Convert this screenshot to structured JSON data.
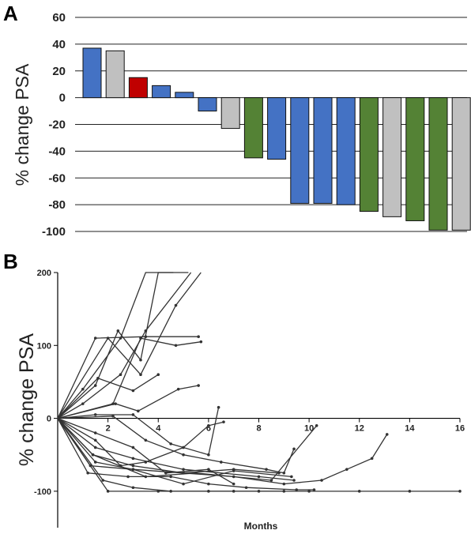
{
  "chart_data": [
    {
      "type": "bar",
      "panel_label": "A",
      "ylabel": "% change PSA",
      "ylim": [
        -100,
        60
      ],
      "yticks": [
        "60",
        "40",
        "20",
        "0",
        "-20",
        "-40",
        "-60",
        "-80",
        "-100"
      ],
      "grid": true,
      "colors": {
        "blue": "#4472c4",
        "gray": "#c0c0c0",
        "red": "#c00000",
        "green": "#548235"
      },
      "values": [
        37,
        35,
        15,
        9,
        4,
        -10,
        -23,
        -45,
        -46,
        -79,
        -79,
        -80,
        -85,
        -89,
        -92,
        -99,
        -99
      ],
      "bar_colors": [
        "blue",
        "gray",
        "red",
        "blue",
        "blue",
        "blue",
        "gray",
        "green",
        "blue",
        "blue",
        "blue",
        "blue",
        "green",
        "gray",
        "green",
        "green",
        "gray"
      ]
    },
    {
      "type": "line",
      "panel_label": "B",
      "ylabel": "% change PSA",
      "xlabel": "Months",
      "xlim": [
        0,
        16
      ],
      "ylim": [
        -150,
        200
      ],
      "xticks": [
        "2",
        "4",
        "6",
        "8",
        "10",
        "12",
        "14",
        "16"
      ],
      "yticks": [
        "200",
        "100",
        "0",
        "-100"
      ],
      "line_color": "#333333",
      "series": [
        {
          "x": [
            0,
            1.5,
            3.5,
            5.6
          ],
          "y": [
            0,
            110,
            112,
            112
          ]
        },
        {
          "x": [
            0,
            1,
            2.5,
            3.5,
            4.6
          ],
          "y": [
            0,
            40,
            110,
            200,
            200
          ]
        },
        {
          "x": [
            0,
            1,
            2.5,
            3.5,
            5.3
          ],
          "y": [
            0,
            20,
            60,
            120,
            200
          ]
        },
        {
          "x": [
            0,
            1.6,
            3.0,
            4.0
          ],
          "y": [
            0,
            55,
            38,
            60
          ]
        },
        {
          "x": [
            0,
            1.5,
            2.4,
            3.3,
            4.0,
            5.2
          ],
          "y": [
            0,
            45,
            120,
            80,
            200,
            200
          ]
        },
        {
          "x": [
            0,
            2.0,
            3.3,
            4.7,
            5.7
          ],
          "y": [
            0,
            110,
            60,
            155,
            200
          ]
        },
        {
          "x": [
            0,
            2.2,
            3.3,
            4.7,
            5.7
          ],
          "y": [
            0,
            20,
            110,
            100,
            105
          ]
        },
        {
          "x": [
            0,
            2.3,
            3.2,
            4.8,
            5.6
          ],
          "y": [
            0,
            20,
            10,
            40,
            45
          ]
        },
        {
          "x": [
            0,
            1.5,
            3.0,
            4.5,
            6.0,
            6.4
          ],
          "y": [
            0,
            5,
            5,
            -35,
            -50,
            15
          ]
        },
        {
          "x": [
            0,
            2.2,
            3.5,
            5.0,
            6.5,
            8.3,
            9.0,
            9.4
          ],
          "y": [
            0,
            3,
            -30,
            -50,
            -60,
            -70,
            -75,
            -42
          ]
        },
        {
          "x": [
            0,
            1.5,
            3.0,
            5.0,
            8.0,
            9.4
          ],
          "y": [
            0,
            -40,
            -55,
            -70,
            -80,
            -85
          ]
        },
        {
          "x": [
            0,
            1.4,
            3.5,
            5.5,
            8.5,
            10.3
          ],
          "y": [
            0,
            -50,
            -80,
            -75,
            -85,
            -10
          ]
        },
        {
          "x": [
            0,
            1.5,
            3.0,
            5.0,
            7.0,
            9.3
          ],
          "y": [
            0,
            -60,
            -70,
            -90,
            -72,
            -80
          ]
        },
        {
          "x": [
            0,
            1.3,
            3.0,
            5.0,
            7.0,
            8.8
          ],
          "y": [
            0,
            -65,
            -70,
            -75,
            -70,
            -75
          ]
        },
        {
          "x": [
            0,
            1.2,
            2.8,
            4.5,
            6.0,
            7.5,
            9.5,
            10.2
          ],
          "y": [
            0,
            -75,
            -80,
            -80,
            -90,
            -95,
            -98,
            -98
          ]
        },
        {
          "x": [
            0,
            1.4,
            3.0,
            5.0,
            7.0,
            9.0,
            10.5,
            11.5,
            12.5,
            13.1
          ],
          "y": [
            0,
            -50,
            -65,
            -75,
            -80,
            -90,
            -85,
            -70,
            -55,
            -22
          ]
        },
        {
          "x": [
            0,
            1.8,
            3.0,
            4.5,
            7.0,
            9.0
          ],
          "y": [
            0,
            -85,
            -95,
            -100,
            -100,
            -100
          ]
        },
        {
          "x": [
            0,
            2.0,
            4.0,
            6.0,
            8.0,
            10.0,
            12.0,
            14.0,
            16.0
          ],
          "y": [
            0,
            -100,
            -100,
            -100,
            -100,
            -100,
            -100,
            -100,
            -100
          ]
        },
        {
          "x": [
            0,
            1.5,
            2.5,
            3.5,
            5.0,
            6.0,
            6.6
          ],
          "y": [
            0,
            -30,
            -65,
            -60,
            -40,
            -10,
            -5
          ]
        },
        {
          "x": [
            0,
            1.5,
            3.0,
            4.3,
            6.0,
            7.0
          ],
          "y": [
            0,
            -20,
            -40,
            -75,
            -70,
            -90
          ]
        }
      ]
    }
  ]
}
